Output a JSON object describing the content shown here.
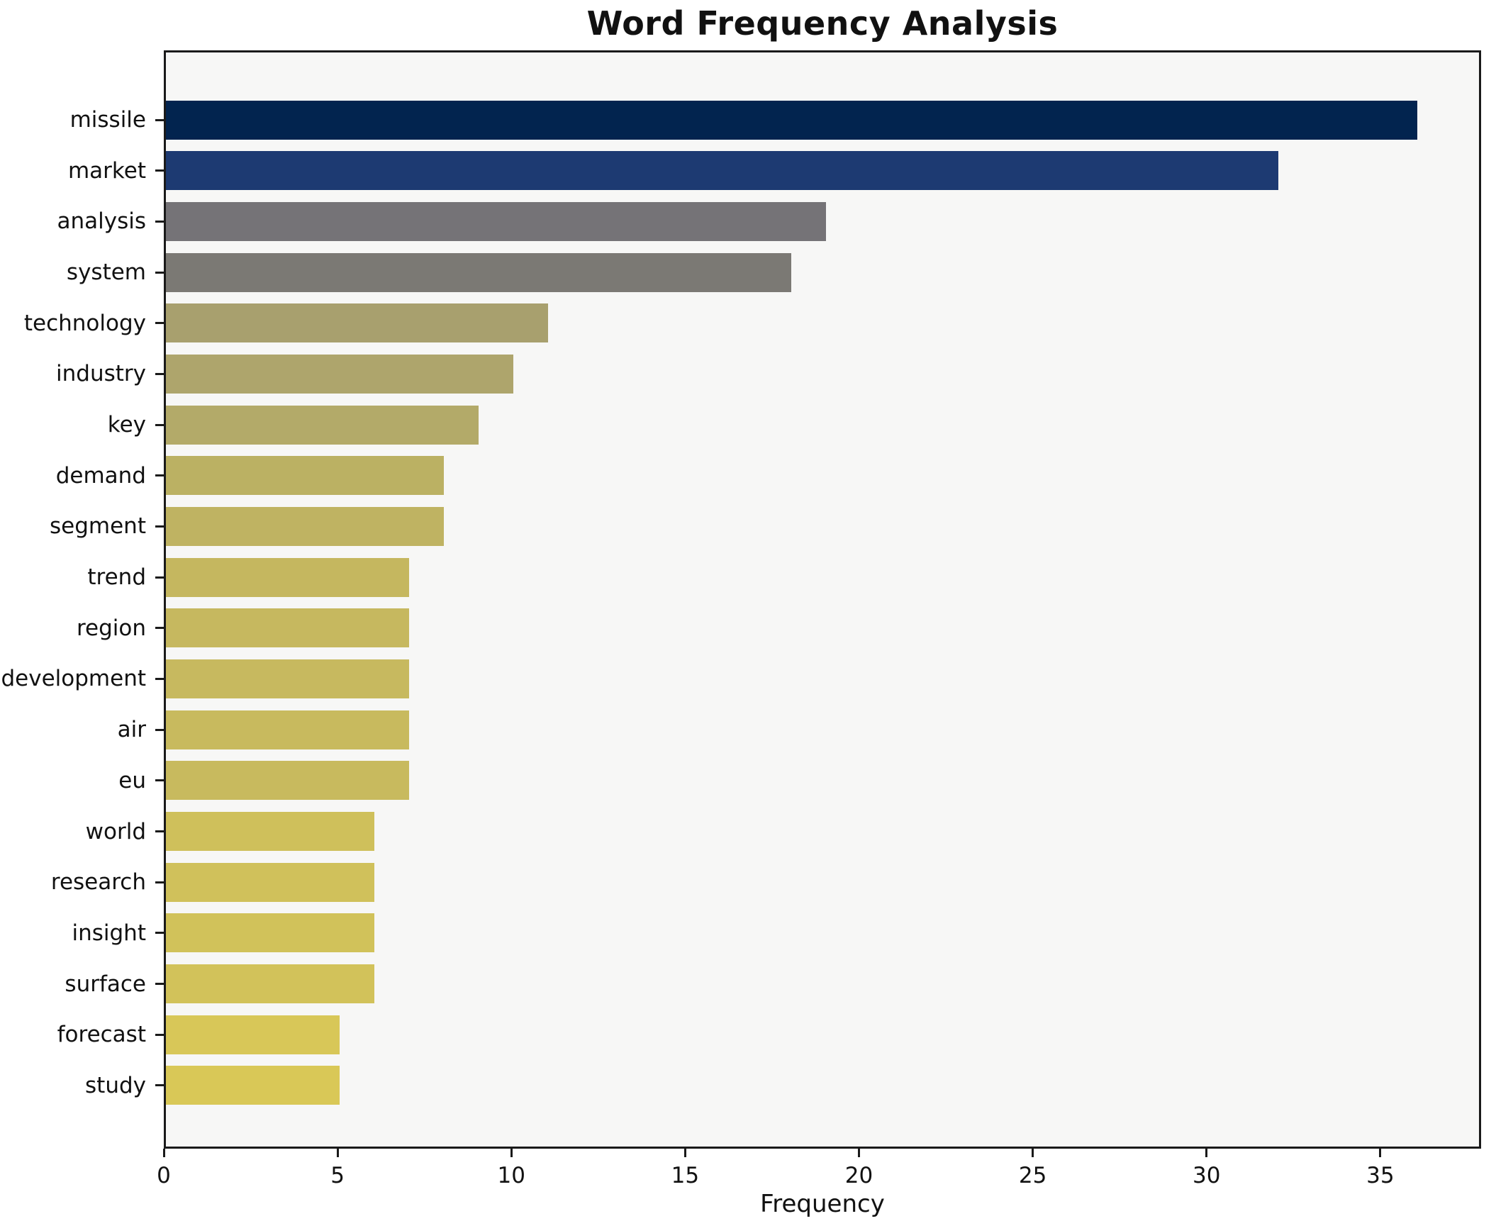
{
  "chart_data": {
    "type": "bar",
    "orientation": "horizontal",
    "title": "Word Frequency Analysis",
    "xlabel": "Frequency",
    "ylabel": "",
    "categories": [
      "missile",
      "market",
      "analysis",
      "system",
      "technology",
      "industry",
      "key",
      "demand",
      "segment",
      "trend",
      "region",
      "development",
      "air",
      "eu",
      "world",
      "research",
      "insight",
      "surface",
      "forecast",
      "study"
    ],
    "values": [
      36,
      32,
      19,
      18,
      11,
      10,
      9,
      8,
      8,
      7,
      7,
      7,
      7,
      7,
      6,
      6,
      6,
      6,
      5,
      5
    ],
    "bar_colors": [
      "#02244f",
      "#1d3a72",
      "#757377",
      "#7b7974",
      "#a8a06e",
      "#aea56c",
      "#b3aa69",
      "#bbb163",
      "#bfb362",
      "#c5b75f",
      "#c6b85f",
      "#c7b95f",
      "#c8ba5e",
      "#c8ba5e",
      "#cfc05b",
      "#d0c15b",
      "#d1c25a",
      "#d2c25a",
      "#d8c758",
      "#d9c857"
    ],
    "xticks": [
      0,
      5,
      10,
      15,
      20,
      25,
      30,
      35
    ],
    "xlim": [
      0,
      37.9
    ],
    "grid": "off",
    "legend": "none",
    "plot_background": "#f7f7f6",
    "figure_background": "#ffffff",
    "spine_color": "#1a1a1a"
  }
}
